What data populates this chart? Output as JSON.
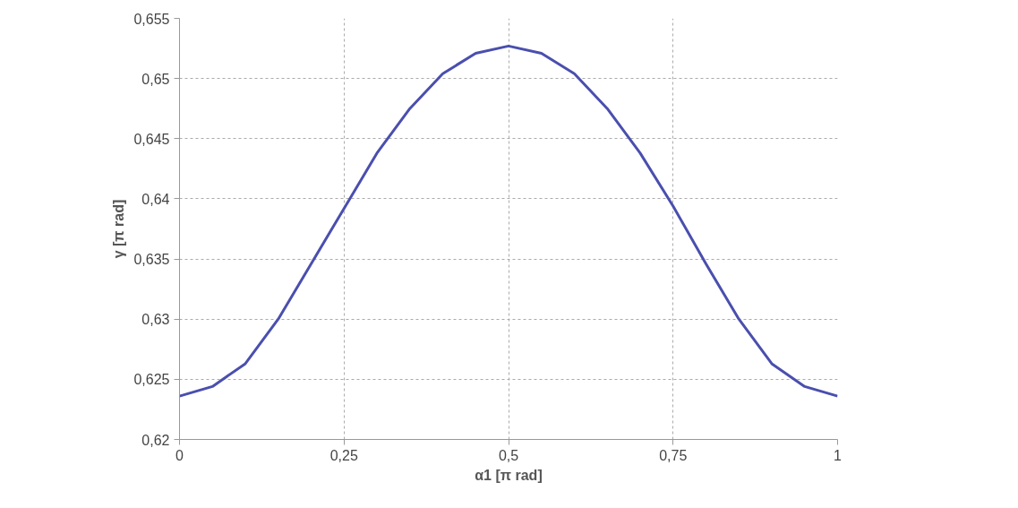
{
  "chart_data": {
    "type": "line",
    "xlabel": "α1 [π rad]",
    "ylabel": "γ [π rad]",
    "x": [
      0,
      0.05,
      0.1,
      0.15,
      0.2,
      0.25,
      0.3,
      0.35,
      0.4,
      0.45,
      0.5,
      0.55,
      0.6,
      0.65,
      0.7,
      0.75,
      0.8,
      0.85,
      0.9,
      0.95,
      1
    ],
    "series": [
      {
        "color": "#4a4fae",
        "values": [
          0.6236,
          0.6244,
          0.6263,
          0.63,
          0.6346,
          0.6392,
          0.6438,
          0.6475,
          0.6504,
          0.6521,
          0.6527,
          0.6521,
          0.6504,
          0.6475,
          0.6438,
          0.6394,
          0.6346,
          0.63,
          0.6263,
          0.6244,
          0.6236
        ]
      }
    ],
    "xlim": [
      0,
      1
    ],
    "xticks": [
      0,
      {
        "value": 0.25,
        "label": "0,25"
      },
      {
        "value": 0.5,
        "label": "0,5"
      },
      {
        "value": 0.75,
        "label": "0,75"
      },
      1
    ],
    "ylim": [
      0.62,
      0.655
    ],
    "yticks": [
      {
        "value": 0.62,
        "label": "0,62"
      },
      {
        "value": 0.625,
        "label": "0,625"
      },
      {
        "value": 0.63,
        "label": "0,63"
      },
      {
        "value": 0.635,
        "label": "0,635"
      },
      {
        "value": 0.64,
        "label": "0,64"
      },
      {
        "value": 0.645,
        "label": "0,645"
      },
      {
        "value": 0.65,
        "label": "0,65"
      },
      {
        "value": 0.655,
        "label": "0,655"
      }
    ],
    "grid": true,
    "marker": "none",
    "line_style": "solid"
  }
}
